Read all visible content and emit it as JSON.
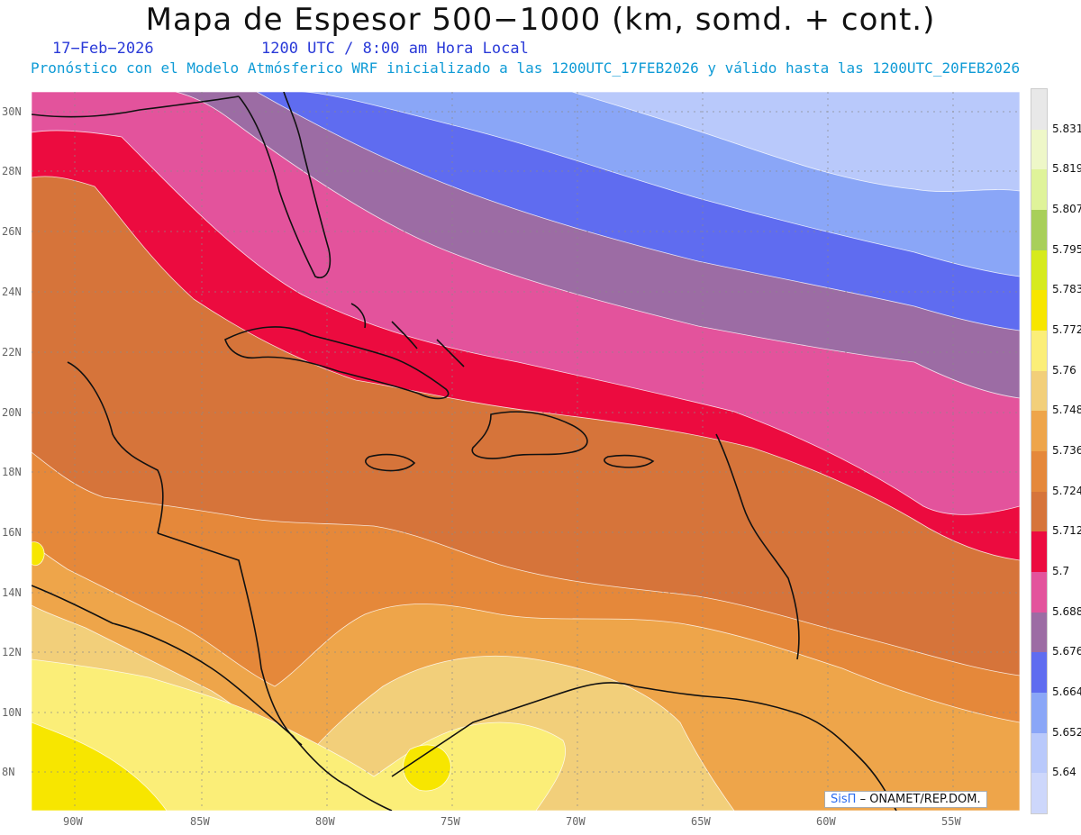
{
  "header": {
    "title": "Mapa de Espesor 500−1000 (km, somd. + cont.)",
    "date": "17−Feb−2026",
    "time": "1200 UTC / 8:00 am Hora Local",
    "forecast": "Pronóstico con el Modelo Atmósferico WRF inicializado a las 1200UTC_17FEB2026 y válido hasta las  1200UTC_20FEB2026"
  },
  "axes": {
    "lat_labels": [
      "30N",
      "28N",
      "26N",
      "24N",
      "22N",
      "20N",
      "18N",
      "16N",
      "14N",
      "12N",
      "10N",
      "8N"
    ],
    "lon_labels": [
      "90W",
      "85W",
      "80W",
      "75W",
      "70W",
      "65W",
      "60W",
      "55W"
    ]
  },
  "colorbar": {
    "labels": [
      "5.831",
      "5.819",
      "5.807",
      "5.795",
      "5.783",
      "5.772",
      "5.76",
      "5.748",
      "5.736",
      "5.724",
      "5.712",
      "5.7",
      "5.688",
      "5.676",
      "5.664",
      "5.652",
      "5.64"
    ],
    "colors": [
      "#e8e8e8",
      "#eef7c8",
      "#dff39a",
      "#a8cf5a",
      "#d6ea1e",
      "#f7e600",
      "#fbee78",
      "#f2cf7a",
      "#eea54a",
      "#e5883a",
      "#d6743a",
      "#ec0b3f",
      "#e3539c",
      "#9c6ca4",
      "#5f6cf0",
      "#8aa6f7",
      "#b9c9fb",
      "#cdd7fb"
    ]
  },
  "credit": {
    "brand": "SisΠ",
    "org": "– ONAMET/REP.DOM."
  }
}
